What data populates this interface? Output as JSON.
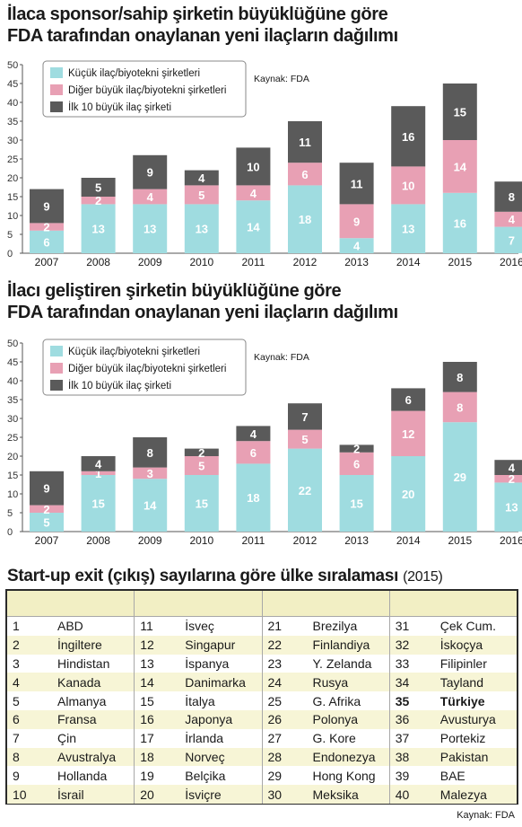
{
  "colors": {
    "small": "#9fdce0",
    "other": "#e8a0b4",
    "top10": "#5a5a5a"
  },
  "chart_data": [
    {
      "type": "bar",
      "stacked": true,
      "title_lines": [
        "İlaca sponsor/sahip şirketin büyüklüğüne göre",
        "FDA tarafından onaylanan yeni ilaçların dağılımı"
      ],
      "categories": [
        "2007",
        "2008",
        "2009",
        "2010",
        "2011",
        "2012",
        "2013",
        "2014",
        "2015",
        "2016"
      ],
      "series": [
        {
          "name": "Küçük ilaç/biyotekni şirketleri",
          "values": [
            6,
            13,
            13,
            13,
            14,
            18,
            4,
            13,
            16,
            7
          ]
        },
        {
          "name": "Diğer büyük ilaç/biyotekni şirketleri",
          "values": [
            2,
            2,
            4,
            5,
            4,
            6,
            9,
            10,
            14,
            4
          ]
        },
        {
          "name": "İlk 10 büyük ilaç şirketi",
          "values": [
            9,
            5,
            9,
            4,
            10,
            11,
            11,
            16,
            15,
            8
          ]
        }
      ],
      "yticks": [
        0,
        5,
        10,
        15,
        20,
        25,
        30,
        35,
        40,
        45,
        50
      ],
      "ylim": [
        0,
        50
      ],
      "grid": false,
      "legend": "top-left",
      "source": "Kaynak: FDA"
    },
    {
      "type": "bar",
      "stacked": true,
      "title_lines": [
        "İlacı geliştiren şirketin büyüklüğüne göre",
        "FDA tarafından onaylanan yeni ilaçların dağılımı"
      ],
      "categories": [
        "2007",
        "2008",
        "2009",
        "2010",
        "2011",
        "2012",
        "2013",
        "2014",
        "2015",
        "2016"
      ],
      "series": [
        {
          "name": "Küçük ilaç/biyotekni şirketleri",
          "values": [
            5,
            15,
            14,
            15,
            18,
            22,
            15,
            20,
            29,
            13
          ]
        },
        {
          "name": "Diğer büyük ilaç/biyotekni şirketleri",
          "values": [
            2,
            1,
            3,
            5,
            6,
            5,
            6,
            12,
            8,
            2
          ]
        },
        {
          "name": "İlk 10 büyük ilaç şirketi",
          "values": [
            9,
            4,
            8,
            2,
            4,
            7,
            2,
            6,
            8,
            4
          ]
        }
      ],
      "yticks": [
        0,
        5,
        10,
        15,
        20,
        25,
        30,
        35,
        40,
        45,
        50
      ],
      "ylim": [
        0,
        50
      ],
      "grid": false,
      "legend": "top-left",
      "source": "Kaynak: FDA"
    }
  ],
  "ranking": {
    "title": "Start-up exit (çıkış) sayılarına göre ülke sıralaması",
    "year": "(2015)",
    "highlight": "35",
    "columns": [
      [
        [
          "1",
          "ABD"
        ],
        [
          "2",
          "İngiltere"
        ],
        [
          "3",
          "Hindistan"
        ],
        [
          "4",
          "Kanada"
        ],
        [
          "5",
          "Almanya"
        ],
        [
          "6",
          "Fransa"
        ],
        [
          "7",
          "Çin"
        ],
        [
          "8",
          "Avustralya"
        ],
        [
          "9",
          "Hollanda"
        ],
        [
          "10",
          "İsrail"
        ]
      ],
      [
        [
          "11",
          "İsveç"
        ],
        [
          "12",
          "Singapur"
        ],
        [
          "13",
          "İspanya"
        ],
        [
          "14",
          "Danimarka"
        ],
        [
          "15",
          "İtalya"
        ],
        [
          "16",
          "Japonya"
        ],
        [
          "17",
          "İrlanda"
        ],
        [
          "18",
          "Norveç"
        ],
        [
          "19",
          "Belçika"
        ],
        [
          "20",
          "İsviçre"
        ]
      ],
      [
        [
          "21",
          "Brezilya"
        ],
        [
          "22",
          "Finlandiya"
        ],
        [
          "23",
          "Y. Zelanda"
        ],
        [
          "24",
          "Rusya"
        ],
        [
          "25",
          "G. Afrika"
        ],
        [
          "26",
          "Polonya"
        ],
        [
          "27",
          "G. Kore"
        ],
        [
          "28",
          "Endonezya"
        ],
        [
          "29",
          "Hong Kong"
        ],
        [
          "30",
          "Meksika"
        ]
      ],
      [
        [
          "31",
          "Çek Cum."
        ],
        [
          "32",
          "İskoçya"
        ],
        [
          "33",
          "Filipinler"
        ],
        [
          "34",
          "Tayland"
        ],
        [
          "35",
          "Türkiye"
        ],
        [
          "36",
          "Avusturya"
        ],
        [
          "37",
          "Portekiz"
        ],
        [
          "38",
          "Pakistan"
        ],
        [
          "39",
          "BAE"
        ],
        [
          "40",
          "Malezya"
        ]
      ]
    ],
    "source": "Kaynak: FDA"
  }
}
